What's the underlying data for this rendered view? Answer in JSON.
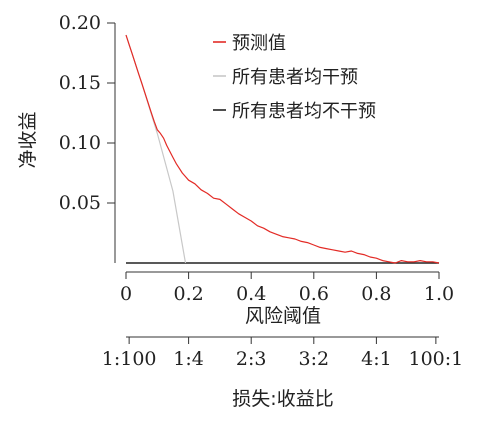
{
  "chart_data": {
    "type": "line",
    "xlabel": "风险阈值",
    "ylabel": "净收益",
    "secondary_xlabel": "损失:收益比",
    "xlim": [
      0,
      1.0
    ],
    "ylim": [
      0,
      0.2
    ],
    "xticks": [
      "0",
      "0.2",
      "0.4",
      "0.6",
      "0.8",
      "1.0"
    ],
    "yticks": [
      "0.05",
      "0.10",
      "0.15",
      "0.20"
    ],
    "secondary_ticks": [
      {
        "x": 0.01,
        "label": "1:100"
      },
      {
        "x": 0.2,
        "label": "1:4"
      },
      {
        "x": 0.4,
        "label": "2:3"
      },
      {
        "x": 0.6,
        "label": "3:2"
      },
      {
        "x": 0.8,
        "label": "4:1"
      },
      {
        "x": 0.99,
        "label": "100:1"
      }
    ],
    "legend_position": "top-right",
    "series": [
      {
        "name": "预测值",
        "color": "#e32b26",
        "x": [
          0.0,
          0.01,
          0.02,
          0.03,
          0.04,
          0.05,
          0.06,
          0.07,
          0.08,
          0.09,
          0.1,
          0.11,
          0.12,
          0.13,
          0.14,
          0.15,
          0.16,
          0.17,
          0.18,
          0.19,
          0.2,
          0.22,
          0.24,
          0.26,
          0.28,
          0.3,
          0.32,
          0.34,
          0.36,
          0.38,
          0.4,
          0.42,
          0.44,
          0.46,
          0.48,
          0.5,
          0.52,
          0.54,
          0.56,
          0.58,
          0.6,
          0.62,
          0.64,
          0.66,
          0.68,
          0.7,
          0.72,
          0.74,
          0.76,
          0.78,
          0.8,
          0.82,
          0.84,
          0.86,
          0.88,
          0.9,
          0.92,
          0.94,
          0.96,
          0.98,
          1.0
        ],
        "values": [
          0.19,
          0.182,
          0.174,
          0.166,
          0.158,
          0.15,
          0.142,
          0.134,
          0.126,
          0.118,
          0.111,
          0.108,
          0.104,
          0.098,
          0.093,
          0.088,
          0.083,
          0.079,
          0.075,
          0.072,
          0.069,
          0.066,
          0.061,
          0.058,
          0.054,
          0.053,
          0.049,
          0.045,
          0.041,
          0.038,
          0.035,
          0.031,
          0.029,
          0.026,
          0.024,
          0.022,
          0.021,
          0.02,
          0.018,
          0.017,
          0.015,
          0.013,
          0.012,
          0.011,
          0.01,
          0.009,
          0.01,
          0.008,
          0.007,
          0.005,
          0.004,
          0.002,
          0.001,
          0.0,
          0.002,
          0.001,
          0.001,
          0.002,
          0.001,
          0.001,
          0.0
        ]
      },
      {
        "name": "所有患者均干预",
        "color": "#c8c8c8",
        "x": [
          0.0,
          0.05,
          0.1,
          0.15,
          0.19
        ],
        "values": [
          0.19,
          0.15,
          0.108,
          0.06,
          0.0
        ]
      },
      {
        "name": "所有患者均不干预",
        "color": "#222222",
        "x": [
          0.0,
          1.0
        ],
        "values": [
          0.0,
          0.0
        ]
      }
    ]
  }
}
